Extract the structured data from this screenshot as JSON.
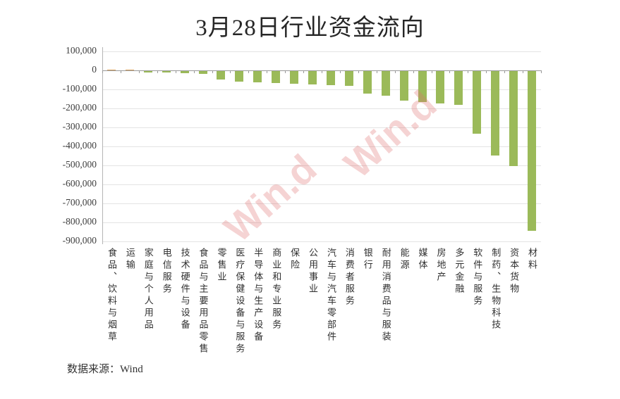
{
  "chart": {
    "title": "3月28日行业资金流向"
  },
  "chart_data": {
    "type": "bar",
    "title": "3月28日行业资金流向",
    "xlabel": "",
    "ylabel": "",
    "categories": [
      "食品、饮料与烟草",
      "运输",
      "家庭与个人用品",
      "电信服务",
      "技术硬件与设备",
      "食品与主要用品零售",
      "零售业",
      "医疗保健设备与服务",
      "半导体与生产设备",
      "商业和专业服务",
      "保险",
      "公用事业",
      "汽车与汽车零部件",
      "消费者服务",
      "银行",
      "耐用消费品与服装",
      "能源",
      "媒体",
      "房地产",
      "多元金融",
      "软件与服务",
      "制药、生物科技",
      "资本货物",
      "材料"
    ],
    "values": [
      3000,
      2000,
      -1000,
      -3000,
      -12000,
      -16000,
      -43000,
      -55000,
      -59000,
      -62000,
      -67000,
      -70000,
      -74000,
      -79000,
      -117000,
      -130000,
      -155000,
      -164000,
      -170000,
      -178000,
      -330000,
      -445000,
      -500000,
      -840000
    ],
    "ylim": [
      -900000,
      100000
    ],
    "y_tick_step": 100000,
    "y_tick_labels": [
      "100,000",
      "0",
      "-100,000",
      "-200,000",
      "-300,000",
      "-400,000",
      "-500,000",
      "-600,000",
      "-700,000",
      "-800,000",
      "-900,000"
    ],
    "grid": true,
    "legend": false,
    "positive_color": "#D8A05C",
    "negative_color": "#9BBA59"
  },
  "watermark": {
    "text": "Win.d",
    "color": "#E07070"
  },
  "footer": {
    "source": "数据来源：Wind"
  }
}
